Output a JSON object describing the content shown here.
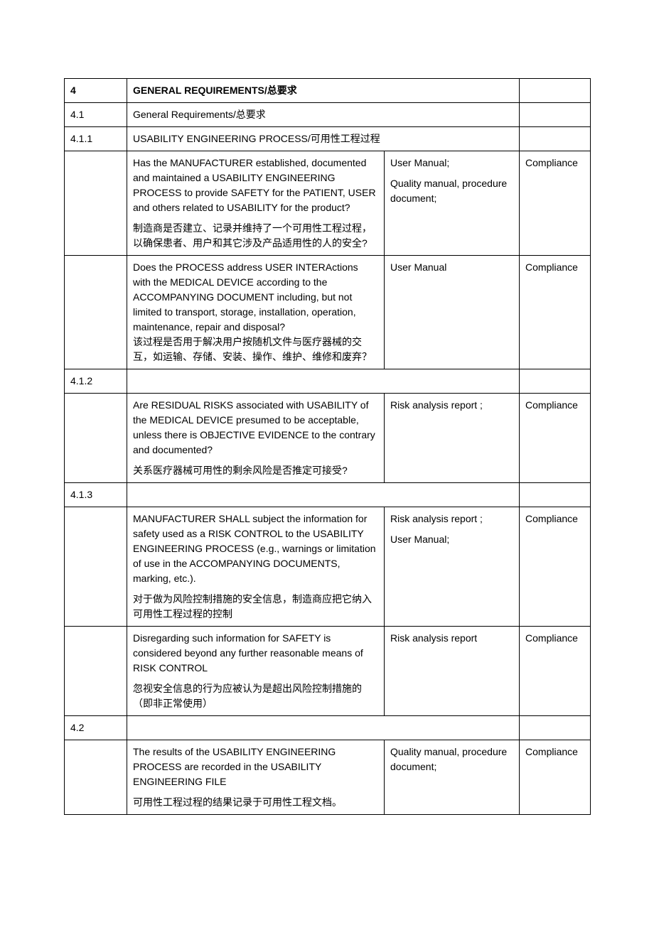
{
  "rows": [
    {
      "type": "header1",
      "num": "4",
      "title": "GENERAL REQUIREMENTS/总要求"
    },
    {
      "type": "header2",
      "num": "4.1",
      "title": "General Requirements/总要求"
    },
    {
      "type": "header3",
      "num": "4.1.1",
      "title_html": "U<span style='font-variant:small-caps'>SABILITY</span> E<span style='font-variant:small-caps'>NGINEERING</span> P<span style='font-variant:small-caps'>ROCESS</span>/可用性工程过程"
    },
    {
      "type": "item",
      "num": "",
      "desc_en": "Has the  MANUFACTURER established, documented and maintained a USABILITY ENGINEERING PROCESS to provide SAFETY for the PATIENT, USER and others related to USABILITY for the product?",
      "desc_zh": "制造商是否建立、记录并维持了一个可用性工程过程，以确保患者、用户和其它涉及产品适用性的人的安全?",
      "ref_lines": [
        "User Manual;",
        "Quality manual, procedure document;"
      ],
      "result": "Compliance"
    },
    {
      "type": "item",
      "num": "",
      "desc_en": "Does the PROCESS address USER INTERActions with the MEDICAL DEVICE according to the ACCOMPANYING DOCUMENT including, but not limited to transport, storage, installation, operation, maintenance, repair and disposal?",
      "desc_zh": "该过程是否用于解决用户按随机文件与医疗器械的交互，如运输、存储、安装、操作、维护、维修和废弃？",
      "desc_zh_inline": true,
      "ref_lines": [
        "User Manual"
      ],
      "result": "Compliance"
    },
    {
      "type": "numonly",
      "num": "4.1.2"
    },
    {
      "type": "item",
      "num": "",
      "desc_en": "Are  RESIDUAL RISKS associated with USABILITY of the MEDICAL DEVICE presumed to be acceptable, unless there is OBJECTIVE EVIDENCE to the contrary and documented?",
      "desc_zh": "关系医疗器械可用性的剩余风险是否推定可接受?",
      "ref_lines": [
        "Risk analysis report ;"
      ],
      "result": "Compliance"
    },
    {
      "type": "numonly",
      "num": "4.1.3"
    },
    {
      "type": "item",
      "num": "",
      "desc_en": "MANUFACTURER SHALL subject the information for safety used as a RISK CONTROL to the USABILITY ENGINEERING PROCESS (e.g., warnings or limitation of use in the ACCOMPANYING DOCUMENTS, marking, etc.).",
      "desc_zh": "对于做为风险控制措施的安全信息，制造商应把它纳入可用性工程过程的控制",
      "ref_lines": [
        "Risk analysis report ;",
        "User Manual;"
      ],
      "result": "Compliance"
    },
    {
      "type": "item",
      "num": "",
      "desc_en": "Disregarding such information for SAFETY is considered beyond any further reasonable means of RISK CONTROL",
      "desc_zh": "忽视安全信息的行为应被认为是超出风险控制措施的（即非正常使用）",
      "ref_lines": [
        "Risk analysis report"
      ],
      "result": "Compliance"
    },
    {
      "type": "numonly",
      "num": "4.2"
    },
    {
      "type": "item",
      "num": "",
      "desc_en": "The results of the USABILITY ENGINEERING PROCESS are recorded in the USABILITY ENGINEERING FILE",
      "desc_zh": "可用性工程过程的结果记录于可用性工程文档。",
      "ref_lines": [
        "Quality manual, procedure document;"
      ],
      "result": "Compliance"
    }
  ]
}
